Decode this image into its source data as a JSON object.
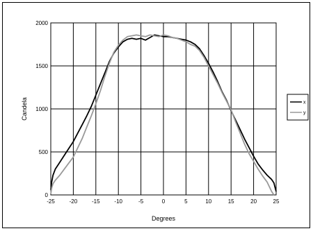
{
  "chart_data": {
    "type": "line",
    "xlabel": "Degrees",
    "ylabel": "Candela",
    "xlim": [
      -25,
      25
    ],
    "ylim": [
      0,
      2000
    ],
    "xticks": [
      -25,
      -20,
      -15,
      -10,
      -5,
      0,
      5,
      10,
      15,
      20,
      25
    ],
    "yticks": [
      0,
      500,
      1000,
      1500,
      2000
    ],
    "grid": true,
    "legend_position": "right",
    "series": [
      {
        "name": "x",
        "color": "#000000",
        "x": [
          -25,
          -24.8,
          -24.5,
          -24,
          -23,
          -22,
          -21,
          -20,
          -19,
          -18,
          -17,
          -16,
          -15,
          -14,
          -13,
          -12,
          -11,
          -10,
          -9,
          -8,
          -7,
          -6,
          -5,
          -4,
          -3,
          -2,
          -1,
          0,
          1,
          2,
          3,
          4,
          5,
          6,
          7,
          8,
          9,
          10,
          11,
          12,
          13,
          14,
          15,
          16,
          17,
          18,
          19,
          20,
          21,
          22,
          23,
          24,
          24.5,
          24.8,
          25
        ],
        "y": [
          60,
          150,
          230,
          300,
          380,
          460,
          540,
          620,
          720,
          820,
          920,
          1030,
          1160,
          1290,
          1420,
          1550,
          1650,
          1720,
          1780,
          1810,
          1820,
          1810,
          1820,
          1800,
          1830,
          1860,
          1850,
          1840,
          1840,
          1830,
          1820,
          1810,
          1800,
          1780,
          1750,
          1700,
          1620,
          1530,
          1430,
          1320,
          1200,
          1100,
          980,
          870,
          760,
          650,
          550,
          450,
          360,
          290,
          230,
          180,
          140,
          80,
          40
        ]
      },
      {
        "name": "y",
        "color": "#999999",
        "x": [
          -25,
          -24.8,
          -24.5,
          -24,
          -23,
          -22,
          -21,
          -20,
          -19,
          -18,
          -17,
          -16,
          -15,
          -14,
          -13,
          -12,
          -11,
          -10,
          -9,
          -8,
          -7,
          -6,
          -5,
          -4,
          -3,
          -2,
          -1,
          0,
          1,
          2,
          3,
          4,
          5,
          6,
          7,
          8,
          9,
          10,
          11,
          12,
          13,
          14,
          15,
          16,
          17,
          18,
          19,
          20,
          21,
          22,
          23,
          24,
          24.5
        ],
        "y": [
          10,
          80,
          130,
          170,
          230,
          300,
          370,
          440,
          550,
          660,
          790,
          920,
          1060,
          1210,
          1380,
          1530,
          1660,
          1740,
          1800,
          1840,
          1850,
          1860,
          1850,
          1840,
          1860,
          1850,
          1840,
          1860,
          1850,
          1830,
          1820,
          1800,
          1780,
          1750,
          1730,
          1680,
          1600,
          1500,
          1400,
          1300,
          1190,
          1090,
          990,
          850,
          720,
          590,
          480,
          390,
          300,
          220,
          150,
          40,
          0
        ]
      }
    ]
  }
}
